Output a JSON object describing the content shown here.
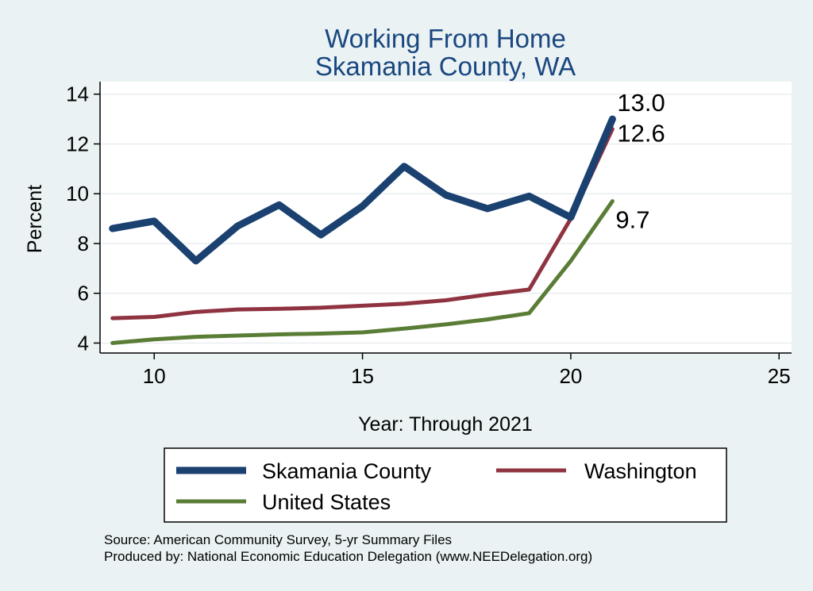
{
  "chart_data": {
    "type": "line",
    "title": "Working From Home",
    "subtitle": "Skamania County, WA",
    "xlabel": "Year: Through 2021",
    "ylabel": "Percent",
    "xlim": [
      8.7,
      25.3
    ],
    "ylim": [
      3.6,
      14.5
    ],
    "xticks": [
      10,
      15,
      20,
      25
    ],
    "yticks": [
      4,
      6,
      8,
      10,
      12,
      14
    ],
    "grid": true,
    "legend_position": "bottom",
    "x": [
      9,
      10,
      11,
      12,
      13,
      14,
      15,
      16,
      17,
      18,
      19,
      20,
      21
    ],
    "series": [
      {
        "name": "Skamania County",
        "color": "#1a4170",
        "width": 9,
        "values": [
          8.6,
          8.9,
          7.3,
          8.7,
          9.55,
          8.35,
          9.5,
          11.1,
          9.95,
          9.4,
          9.9,
          9.05,
          13.0
        ],
        "end_label": "13.0"
      },
      {
        "name": "Washington",
        "color": "#8f3340",
        "width": 5,
        "values": [
          5.0,
          5.05,
          5.25,
          5.35,
          5.38,
          5.42,
          5.5,
          5.58,
          5.72,
          5.95,
          6.15,
          9.0,
          12.6
        ],
        "end_label": "12.6"
      },
      {
        "name": "United States",
        "color": "#5a7d36",
        "width": 5,
        "values": [
          4.0,
          4.15,
          4.25,
          4.3,
          4.35,
          4.38,
          4.43,
          4.58,
          4.75,
          4.95,
          5.2,
          7.3,
          9.7
        ],
        "end_label": "9.7"
      }
    ]
  },
  "notes": {
    "source": "Source: American Community Survey, 5-yr Summary Files",
    "producer": "Produced by: National Economic Education Delegation (www.NEEDelegation.org)"
  }
}
